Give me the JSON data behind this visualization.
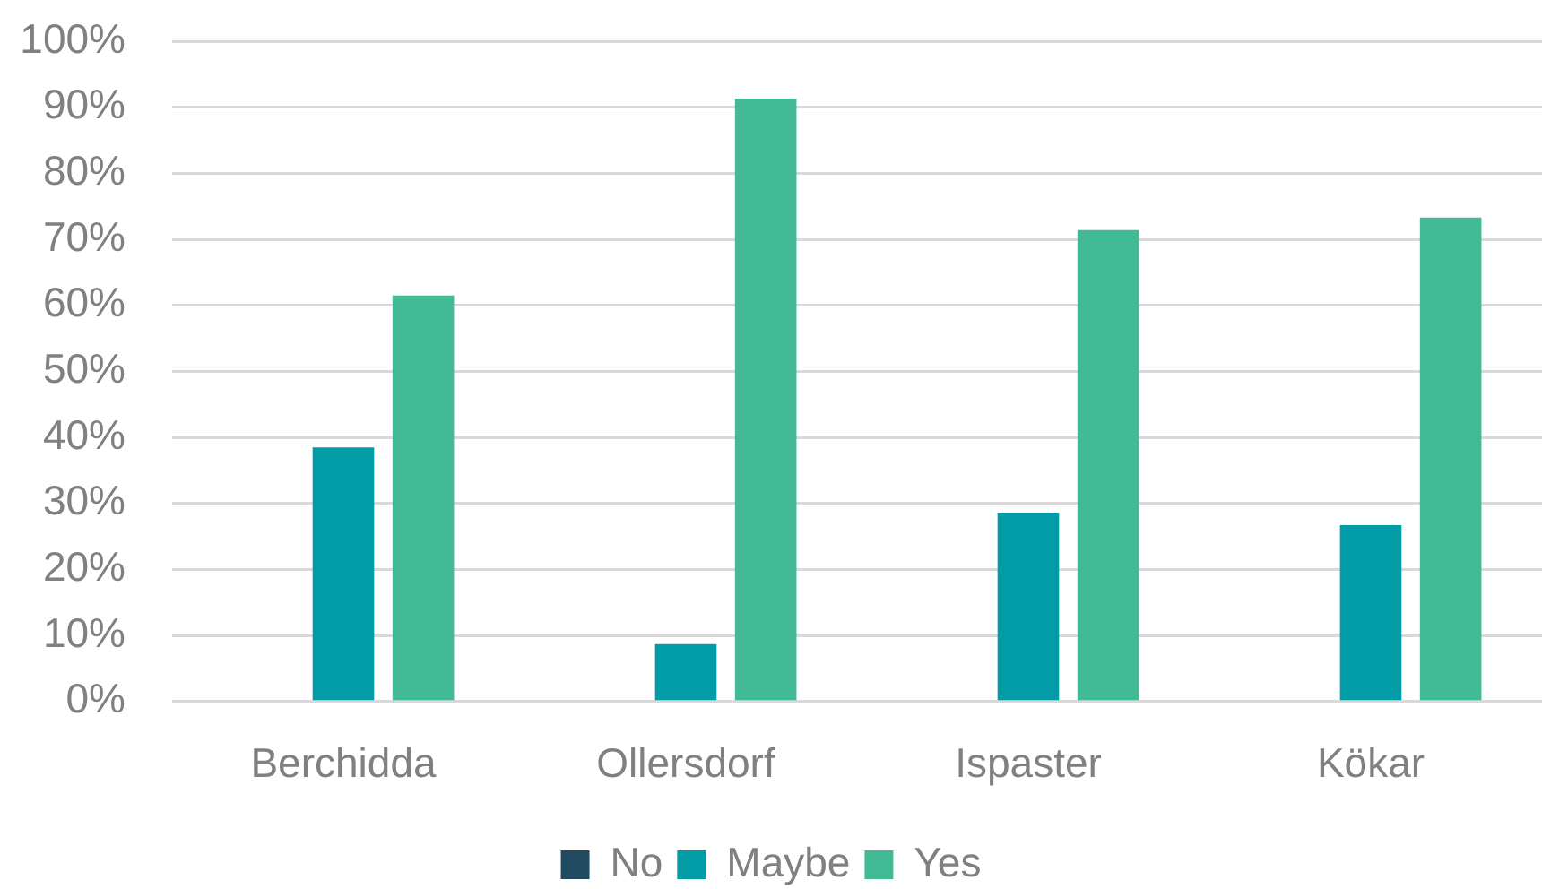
{
  "chart_data": {
    "type": "bar",
    "categories": [
      "Berchidda",
      "Ollersdorf",
      "Ispaster",
      "Kökar"
    ],
    "series": [
      {
        "name": "No",
        "color": "#1f4a5f",
        "values": [
          0,
          0,
          0,
          0
        ]
      },
      {
        "name": "Maybe",
        "color": "#029ca6",
        "values": [
          38.5,
          8.7,
          28.6,
          26.7
        ]
      },
      {
        "name": "Yes",
        "color": "#43ba96",
        "values": [
          61.5,
          91.3,
          71.4,
          73.3
        ]
      }
    ],
    "ylim": [
      0,
      100
    ],
    "yticks": [
      {
        "value": 0,
        "label": "0%"
      },
      {
        "value": 10,
        "label": "10%"
      },
      {
        "value": 20,
        "label": "20%"
      },
      {
        "value": 30,
        "label": "30%"
      },
      {
        "value": 40,
        "label": "40%"
      },
      {
        "value": 50,
        "label": "50%"
      },
      {
        "value": 60,
        "label": "60%"
      },
      {
        "value": 70,
        "label": "70%"
      },
      {
        "value": 80,
        "label": "80%"
      },
      {
        "value": 90,
        "label": "90%"
      },
      {
        "value": 100,
        "label": "100%"
      }
    ],
    "grid": "y",
    "legend": "bottom"
  }
}
